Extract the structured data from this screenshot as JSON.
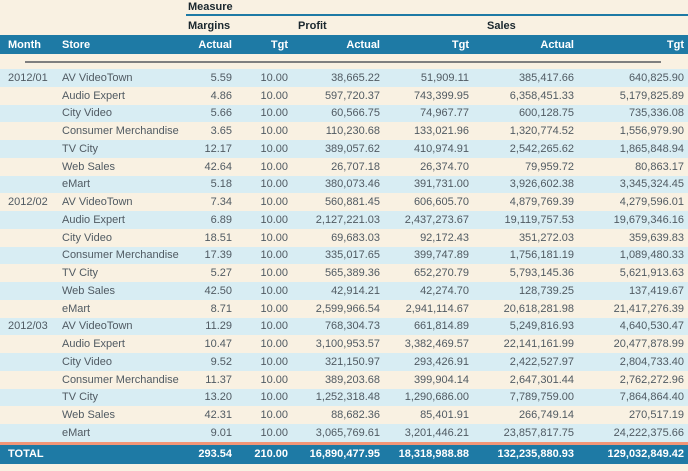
{
  "header": {
    "measure_label": "Measure",
    "group_margins": "Margins",
    "group_profit": "Profit",
    "group_sales": "Sales",
    "col_month": "Month",
    "col_store": "Store",
    "col_actual": "Actual",
    "col_tgt": "Tgt"
  },
  "rows": [
    {
      "month": "2012/01",
      "store": "AV VideoTown",
      "values": [
        "5.59",
        "10.00",
        "38,665.22",
        "51,909.11",
        "385,417.66",
        "640,825.90"
      ]
    },
    {
      "month": "",
      "store": "Audio Expert",
      "values": [
        "4.86",
        "10.00",
        "597,720.37",
        "743,399.95",
        "6,358,451.33",
        "5,179,825.89"
      ]
    },
    {
      "month": "",
      "store": "City Video",
      "values": [
        "5.66",
        "10.00",
        "60,566.75",
        "74,967.77",
        "600,128.75",
        "735,336.08"
      ]
    },
    {
      "month": "",
      "store": "Consumer Merchandise",
      "values": [
        "3.65",
        "10.00",
        "110,230.68",
        "133,021.96",
        "1,320,774.52",
        "1,556,979.90"
      ]
    },
    {
      "month": "",
      "store": "TV City",
      "values": [
        "12.17",
        "10.00",
        "389,057.62",
        "410,974.91",
        "2,542,265.62",
        "1,865,848.94"
      ]
    },
    {
      "month": "",
      "store": "Web Sales",
      "values": [
        "42.64",
        "10.00",
        "26,707.18",
        "26,374.70",
        "79,959.72",
        "80,863.17"
      ]
    },
    {
      "month": "",
      "store": "eMart",
      "values": [
        "5.18",
        "10.00",
        "380,073.46",
        "391,731.00",
        "3,926,602.38",
        "3,345,324.45"
      ]
    },
    {
      "month": "2012/02",
      "store": "AV VideoTown",
      "values": [
        "7.34",
        "10.00",
        "560,881.45",
        "606,605.70",
        "4,879,769.39",
        "4,279,596.01"
      ]
    },
    {
      "month": "",
      "store": "Audio Expert",
      "values": [
        "6.89",
        "10.00",
        "2,127,221.03",
        "2,437,273.67",
        "19,119,757.53",
        "19,679,346.16"
      ]
    },
    {
      "month": "",
      "store": "City Video",
      "values": [
        "18.51",
        "10.00",
        "69,683.03",
        "92,172.43",
        "351,272.03",
        "359,639.83"
      ]
    },
    {
      "month": "",
      "store": "Consumer Merchandise",
      "values": [
        "17.39",
        "10.00",
        "335,017.65",
        "399,747.89",
        "1,756,181.19",
        "1,089,480.33"
      ]
    },
    {
      "month": "",
      "store": "TV City",
      "values": [
        "5.27",
        "10.00",
        "565,389.36",
        "652,270.79",
        "5,793,145.36",
        "5,621,913.63"
      ]
    },
    {
      "month": "",
      "store": "Web Sales",
      "values": [
        "42.50",
        "10.00",
        "42,914.21",
        "42,274.70",
        "128,739.25",
        "137,419.67"
      ]
    },
    {
      "month": "",
      "store": "eMart",
      "values": [
        "8.71",
        "10.00",
        "2,599,966.54",
        "2,941,114.67",
        "20,618,281.98",
        "21,417,276.39"
      ]
    },
    {
      "month": "2012/03",
      "store": "AV VideoTown",
      "values": [
        "11.29",
        "10.00",
        "768,304.73",
        "661,814.89",
        "5,249,816.93",
        "4,640,530.47"
      ]
    },
    {
      "month": "",
      "store": "Audio Expert",
      "values": [
        "10.47",
        "10.00",
        "3,100,953.57",
        "3,382,469.57",
        "22,141,161.99",
        "20,477,878.99"
      ]
    },
    {
      "month": "",
      "store": "City Video",
      "values": [
        "9.52",
        "10.00",
        "321,150.97",
        "293,426.91",
        "2,422,527.97",
        "2,804,733.40"
      ]
    },
    {
      "month": "",
      "store": "Consumer Merchandise",
      "values": [
        "11.37",
        "10.00",
        "389,203.68",
        "399,904.14",
        "2,647,301.44",
        "2,762,272.96"
      ]
    },
    {
      "month": "",
      "store": "TV City",
      "values": [
        "13.20",
        "10.00",
        "1,252,318.48",
        "1,290,686.00",
        "7,789,759.00",
        "7,864,864.40"
      ]
    },
    {
      "month": "",
      "store": "Web Sales",
      "values": [
        "42.31",
        "10.00",
        "88,682.36",
        "85,401.91",
        "266,749.14",
        "270,517.19"
      ]
    },
    {
      "month": "",
      "store": "eMart",
      "values": [
        "9.01",
        "10.00",
        "3,065,769.61",
        "3,201,446.21",
        "23,857,817.75",
        "24,222,375.66"
      ]
    }
  ],
  "total": {
    "label": "TOTAL",
    "values": [
      "293.54",
      "210.00",
      "16,890,477.95",
      "18,318,988.88",
      "132,235,880.93",
      "129,032,849.42"
    ]
  },
  "colors": {
    "teal_header": "#1e7aa5",
    "row_stripe_blue": "#d8edf3",
    "background_cream": "#f9f1e2",
    "separator_gray": "#7f7f7f",
    "separator_salmon": "#f29677",
    "header_text": "#1a272e",
    "data_text": "#505a62",
    "header_text_on_teal": "#ffffff"
  }
}
